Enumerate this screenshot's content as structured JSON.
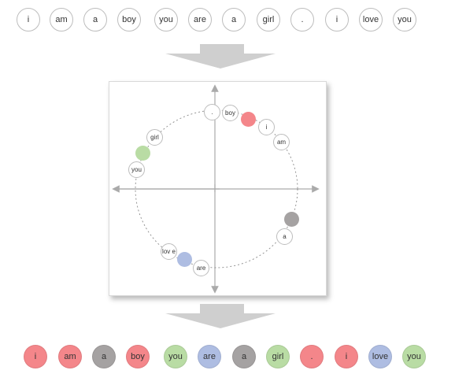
{
  "input_tokens": [
    "i",
    "am",
    "a",
    "boy",
    "you",
    "are",
    "a",
    "girl",
    ".",
    "i",
    "love",
    "you"
  ],
  "output_tokens": [
    {
      "label": "i",
      "color": "#f4868a"
    },
    {
      "label": "am",
      "color": "#f4868a"
    },
    {
      "label": "a",
      "color": "#a5a2a2"
    },
    {
      "label": "boy",
      "color": "#f4868a"
    },
    {
      "label": "you",
      "color": "#b9dca4"
    },
    {
      "label": "are",
      "color": "#aebde2"
    },
    {
      "label": "a",
      "color": "#a5a2a2"
    },
    {
      "label": "girl",
      "color": "#b9dca4"
    },
    {
      "label": ".",
      "color": "#f4868a"
    },
    {
      "label": "i",
      "color": "#f4868a"
    },
    {
      "label": "love",
      "color": "#aebde2"
    },
    {
      "label": "you",
      "color": "#b9dca4"
    }
  ],
  "plot": {
    "word_points": {
      "dot": ".",
      "boy": "boy",
      "i": "i",
      "am": "am",
      "girl": "girl",
      "you": "you",
      "a": "a",
      "love": "lov e",
      "are": "are"
    },
    "cluster_colors": {
      "red": "#f4868a",
      "green": "#b9dca4",
      "gray": "#a5a2a2",
      "blue": "#aebde2"
    }
  },
  "colors": {
    "arrow": "#cccccc",
    "outline": "#bdbdbd",
    "axis": "#aaaaaa"
  }
}
